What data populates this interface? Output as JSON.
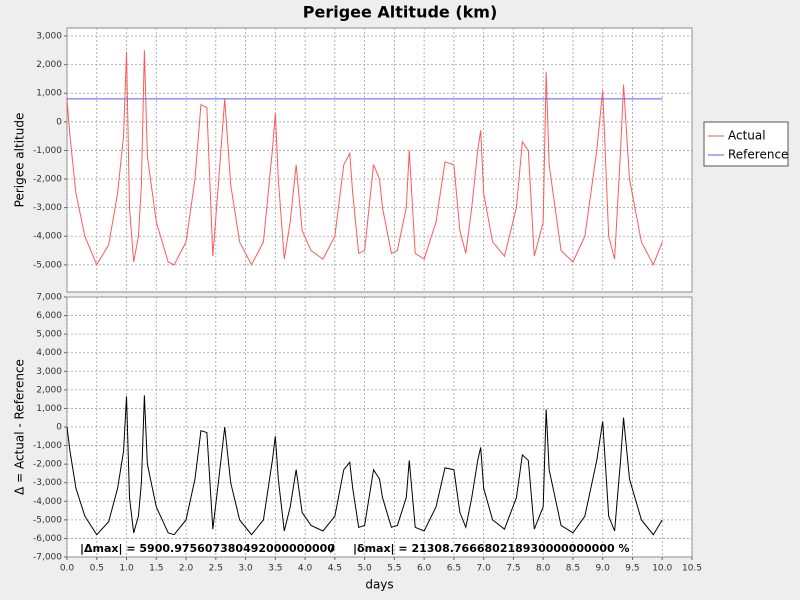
{
  "chart_data": [
    {
      "type": "line",
      "title": "Perigee Altitude (km)",
      "ylabel": "Perigee altitude",
      "x": [
        0,
        0.05,
        0.15,
        0.3,
        0.5,
        0.7,
        0.85,
        0.95,
        1.0,
        1.05,
        1.12,
        1.2,
        1.25,
        1.3,
        1.35,
        1.5,
        1.7,
        1.8,
        2.0,
        2.15,
        2.25,
        2.35,
        2.45,
        2.55,
        2.65,
        2.75,
        2.9,
        3.1,
        3.3,
        3.45,
        3.5,
        3.55,
        3.65,
        3.75,
        3.85,
        3.95,
        4.1,
        4.3,
        4.5,
        4.65,
        4.75,
        4.8,
        4.9,
        5.0,
        5.1,
        5.15,
        5.25,
        5.3,
        5.45,
        5.55,
        5.7,
        5.75,
        5.85,
        6.0,
        6.2,
        6.35,
        6.5,
        6.6,
        6.7,
        6.8,
        6.9,
        6.95,
        7.0,
        7.15,
        7.35,
        7.55,
        7.65,
        7.75,
        7.85,
        8.0,
        8.05,
        8.1,
        8.3,
        8.5,
        8.7,
        8.9,
        9.0,
        9.1,
        9.2,
        9.3,
        9.35,
        9.45,
        9.65,
        9.85,
        10.0
      ],
      "series": [
        {
          "name": "Actual",
          "color": "#ff5a5a",
          "values": [
            800,
            -500,
            -2500,
            -4000,
            -5000,
            -4300,
            -2500,
            -500,
            2450,
            -3000,
            -4900,
            -4000,
            -2200,
            2500,
            -1200,
            -3500,
            -4900,
            -5000,
            -4200,
            -2000,
            600,
            500,
            -4700,
            -2000,
            800,
            -2200,
            -4200,
            -5000,
            -4200,
            -1000,
            300,
            -2000,
            -4800,
            -3500,
            -1500,
            -3800,
            -4500,
            -4800,
            -4000,
            -1500,
            -1100,
            -2500,
            -4600,
            -4500,
            -2500,
            -1500,
            -2000,
            -3000,
            -4600,
            -4500,
            -3000,
            -1000,
            -4600,
            -4800,
            -3500,
            -1400,
            -1500,
            -3800,
            -4600,
            -3000,
            -1000,
            -300,
            -2500,
            -4200,
            -4700,
            -3000,
            -700,
            -1000,
            -4700,
            -3500,
            1750,
            -1500,
            -4500,
            -4900,
            -4000,
            -1000,
            1100,
            -4000,
            -4800,
            -1000,
            1300,
            -2000,
            -4200,
            -5000,
            -4200
          ]
        },
        {
          "name": "Reference",
          "color": "#5a5aff",
          "x": [
            0,
            10.0
          ],
          "values": [
            800,
            800
          ]
        }
      ],
      "ylim": [
        -5950,
        3280
      ],
      "yticks": [
        {
          "value": -5000,
          "label": "-5,000"
        },
        {
          "value": -4000,
          "label": "-4,000"
        },
        {
          "value": -3000,
          "label": "-3,000"
        },
        {
          "value": -2000,
          "label": "-2,000"
        },
        {
          "value": -1000,
          "label": "-1,000"
        },
        0,
        {
          "value": 1000,
          "label": "1,000"
        },
        {
          "value": 2000,
          "label": "2,000"
        },
        {
          "value": 3000,
          "label": "3,000"
        }
      ],
      "grid": true,
      "legend": "right"
    },
    {
      "type": "line",
      "ylabel": "Δ = Actual - Reference",
      "xlabel": "days",
      "series": [
        {
          "color": "#000000",
          "values": [
            0,
            -1300,
            -3300,
            -4800,
            -5800,
            -5100,
            -3300,
            -1300,
            1650,
            -3800,
            -5700,
            -4800,
            -3000,
            1700,
            -2000,
            -4300,
            -5700,
            -5800,
            -5000,
            -2800,
            -200,
            -300,
            -5500,
            -2800,
            0,
            -3000,
            -5000,
            -5800,
            -5000,
            -1800,
            -500,
            -2800,
            -5600,
            -4300,
            -2300,
            -4600,
            -5300,
            -5600,
            -4800,
            -2300,
            -1900,
            -3300,
            -5400,
            -5300,
            -3300,
            -2300,
            -2800,
            -3800,
            -5400,
            -5300,
            -3800,
            -1800,
            -5400,
            -5600,
            -4300,
            -2200,
            -2300,
            -4600,
            -5400,
            -3800,
            -1800,
            -1100,
            -3300,
            -5000,
            -5500,
            -3800,
            -1500,
            -1800,
            -5500,
            -4300,
            950,
            -2300,
            -5300,
            -5700,
            -4800,
            -1800,
            300,
            -4800,
            -5600,
            -1800,
            500,
            -2800,
            -5000,
            -5800,
            -5000
          ]
        }
      ],
      "ylim": [
        -7000,
        7000
      ],
      "yticks": [
        {
          "value": -7000,
          "label": "-7,000"
        },
        {
          "value": -6000,
          "label": "-6,000"
        },
        {
          "value": -5000,
          "label": "-5,000"
        },
        {
          "value": -4000,
          "label": "-4,000"
        },
        {
          "value": -3000,
          "label": "-3,000"
        },
        {
          "value": -2000,
          "label": "-2,000"
        },
        {
          "value": -1000,
          "label": "-1,000"
        },
        0,
        {
          "value": 1000,
          "label": "1,000"
        },
        {
          "value": 2000,
          "label": "2,000"
        },
        {
          "value": 3000,
          "label": "3,000"
        },
        {
          "value": 4000,
          "label": "4,000"
        },
        {
          "value": 5000,
          "label": "5,000"
        },
        {
          "value": 6000,
          "label": "6,000"
        },
        {
          "value": 7000,
          "label": "7,000"
        }
      ],
      "xlim": [
        0,
        10.5
      ],
      "xticks": [
        {
          "value": 0,
          "label": "0.0"
        },
        0.5,
        {
          "value": 1,
          "label": "1.0"
        },
        1.5,
        {
          "value": 2,
          "label": "2.0"
        },
        2.5,
        {
          "value": 3,
          "label": "3.0"
        },
        3.5,
        {
          "value": 4,
          "label": "4.0"
        },
        4.5,
        {
          "value": 5,
          "label": "5.0"
        },
        5.5,
        {
          "value": 6,
          "label": "6.0"
        },
        6.5,
        {
          "value": 7,
          "label": "7.0"
        },
        7.5,
        {
          "value": 8,
          "label": "8.0"
        },
        8.5,
        {
          "value": 9,
          "label": "9.0"
        },
        9.5,
        {
          "value": 10,
          "label": "10.0"
        },
        10.5
      ],
      "grid": true,
      "annotations": [
        "|Δmax| = 5900.975607380492000000000",
        "/",
        "|δmax| = 21308.766680218930000000000 %"
      ]
    }
  ]
}
